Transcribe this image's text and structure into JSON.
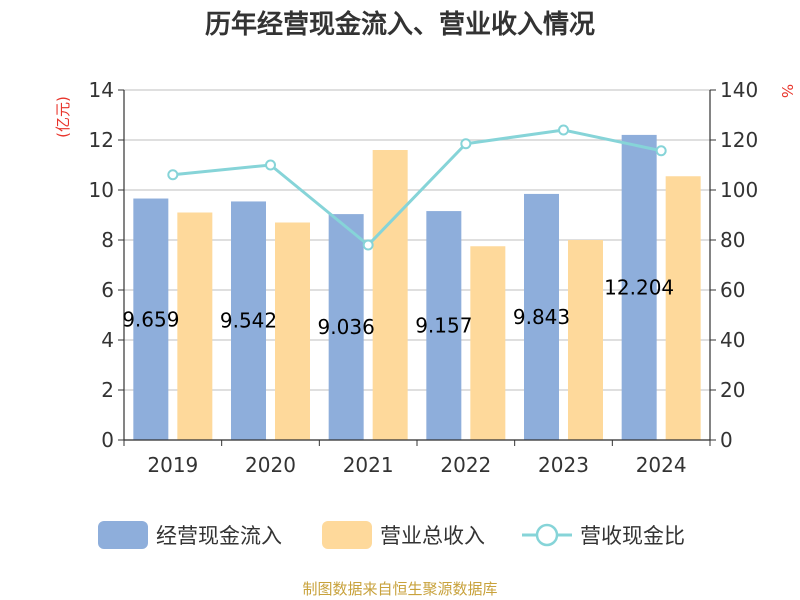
{
  "chart_data": {
    "type": "bar",
    "title": "历年经营现金流入、营业收入情况",
    "categories": [
      "2019",
      "2020",
      "2021",
      "2022",
      "2023",
      "2024"
    ],
    "series": [
      {
        "name": "经营现金流入",
        "type": "bar",
        "axis": "left",
        "color": "#8eaedb",
        "values": [
          9.659,
          9.542,
          9.036,
          9.157,
          9.843,
          12.204
        ],
        "labels": [
          "9.659",
          "9.542",
          "9.036",
          "9.157",
          "9.843",
          "12.204"
        ]
      },
      {
        "name": "营业总收入",
        "type": "bar",
        "axis": "left",
        "color": "#fed99b",
        "values": [
          9.1,
          8.7,
          11.6,
          7.75,
          8.0,
          10.55
        ]
      },
      {
        "name": "营收现金比",
        "type": "line",
        "axis": "right",
        "color": "#86d4d8",
        "values": [
          106.1,
          110.0,
          78.0,
          118.5,
          124.0,
          115.7
        ]
      }
    ],
    "y_left": {
      "label": "(亿元)",
      "min": 0,
      "max": 14,
      "ticks": [
        "0",
        "2",
        "4",
        "6",
        "8",
        "10",
        "12",
        "14"
      ]
    },
    "y_right": {
      "label": "%",
      "min": 0,
      "max": 140,
      "ticks": [
        "0",
        "20",
        "40",
        "60",
        "80",
        "100",
        "120",
        "140"
      ]
    },
    "grid": true,
    "legend_position": "bottom"
  },
  "source_text": "制图数据来自恒生聚源数据库"
}
